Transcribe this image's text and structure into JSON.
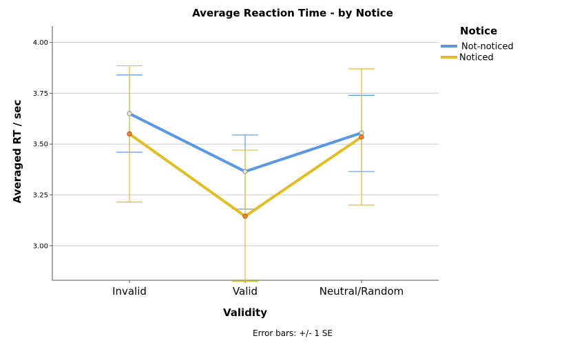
{
  "chart_data": {
    "type": "line",
    "title": "Average Reaction Time - by Notice",
    "xlabel": "Validity",
    "ylabel": "Averaged RT / sec",
    "categories": [
      "Invalid",
      "Valid",
      "Neutral/Random"
    ],
    "ylim": [
      2.83,
      4.08
    ],
    "yticks": [
      3.0,
      3.25,
      3.5,
      3.75,
      4.0
    ],
    "ytick_labels": [
      "3.00",
      "3.25",
      "3.50",
      "3.75",
      "4.00"
    ],
    "grid": true,
    "legend_title": "Notice",
    "legend_position": "top-right",
    "footnote": "Error bars: +/- 1 SE",
    "series": [
      {
        "name": "Not-noticed",
        "color": "#5b97e0",
        "values": [
          3.65,
          3.365,
          3.555
        ],
        "error_low": [
          3.46,
          3.18,
          3.365
        ],
        "error_high": [
          3.84,
          3.545,
          3.74
        ]
      },
      {
        "name": "Noticed",
        "color": "#e1bd26",
        "values": [
          3.55,
          3.145,
          3.535
        ],
        "error_low": [
          3.215,
          2.825,
          3.2
        ],
        "error_high": [
          3.885,
          3.47,
          3.87
        ]
      }
    ]
  }
}
